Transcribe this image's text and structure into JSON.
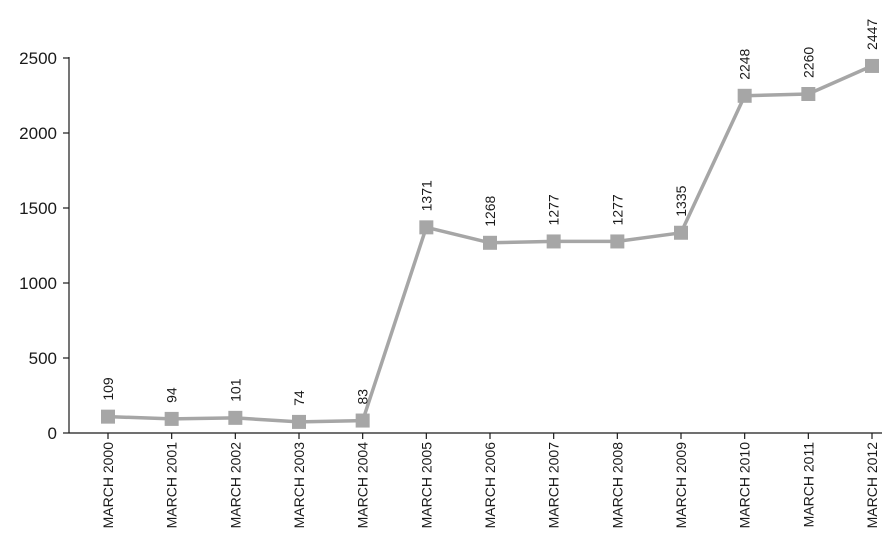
{
  "chart_data": {
    "type": "line",
    "title": "",
    "xlabel": "",
    "ylabel": "",
    "categories": [
      "MARCH 2000",
      "MARCH 2001",
      "MARCH 2002",
      "MARCH 2003",
      "MARCH 2004",
      "MARCH 2005",
      "MARCH 2006",
      "MARCH 2007",
      "MARCH 2008",
      "MARCH 2009",
      "MARCH 2010",
      "MARCH 2011",
      "MARCH 2012"
    ],
    "values": [
      109,
      94,
      101,
      74,
      83,
      1371,
      1268,
      1277,
      1277,
      1335,
      2248,
      2260,
      2447
    ],
    "data_labels": [
      "109",
      "94",
      "101",
      "74",
      "83",
      "1371",
      "1268",
      "1277",
      "1277",
      "1335",
      "2248",
      "2260",
      "2447"
    ],
    "ylim": [
      0,
      2500
    ],
    "yticks": [
      0,
      500,
      1000,
      1500,
      2000,
      2500
    ],
    "ytick_labels": [
      "0",
      "500",
      "1000",
      "1500",
      "2000",
      "2500"
    ],
    "grid": false,
    "marker": "square",
    "colors": {
      "series": "#a6a6a6",
      "axis": "#1a1a1a"
    }
  }
}
